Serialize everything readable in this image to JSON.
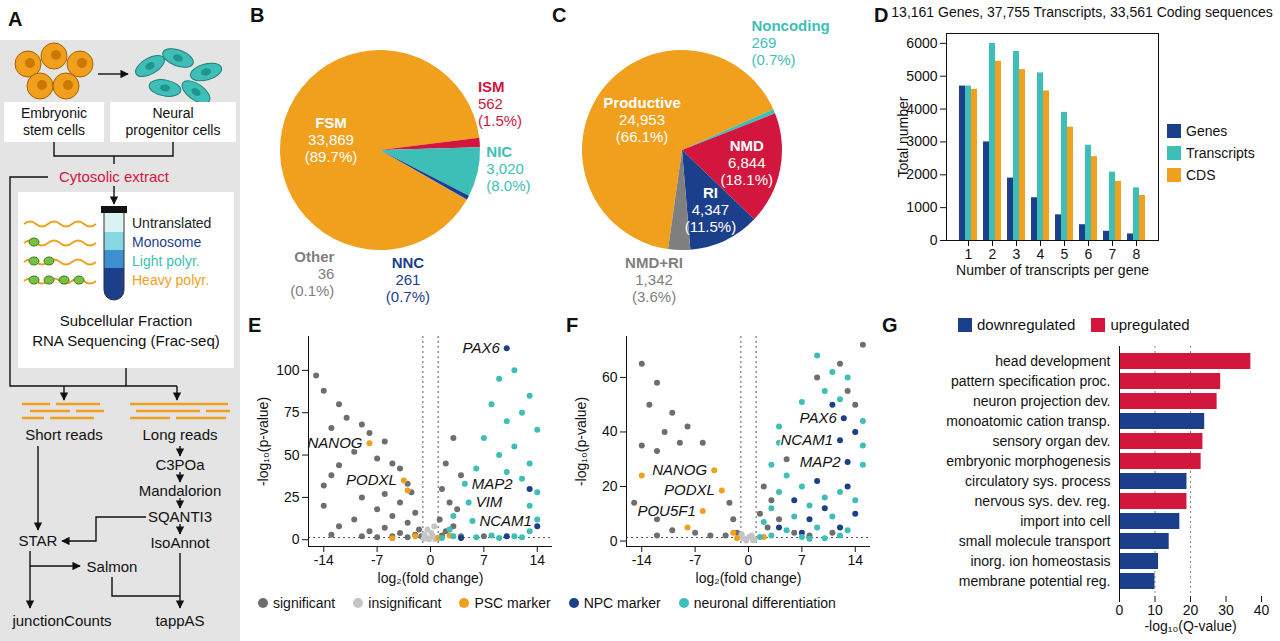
{
  "diagram": {
    "panel": "A",
    "start_cells": {
      "label": [
        "Embryonic",
        "stem cells"
      ],
      "color": "#f0a01c"
    },
    "end_cells": {
      "label": [
        "Neural",
        "progenitor cells"
      ],
      "color": "#3dbfb7"
    },
    "extract": {
      "label": "Cytosolic extract",
      "color": "#d2163d"
    },
    "fractions": [
      {
        "label": "Untranslated",
        "color": "#222222"
      },
      {
        "label": "Monosome",
        "color": "#1b3f8b"
      },
      {
        "label": "Light polyr.",
        "color": "#3dbfb7"
      },
      {
        "label": "Heavy polyr.",
        "color": "#f0a01c"
      }
    ],
    "method": [
      "Subcellular Fraction",
      "RNA Sequencing (Frac-seq)"
    ],
    "short_reads": "Short reads",
    "long_reads": "Long reads",
    "long_read_pipeline": [
      "C3POa",
      "Mandalorion",
      "SQANTI3",
      "IsoAnnot"
    ],
    "short_read_tools": {
      "aligner": "STAR",
      "quantifier": "Salmon"
    },
    "outputs": [
      "junctionCounts",
      "tappAS"
    ]
  },
  "chart_data": [
    {
      "panel": "B",
      "type": "pie",
      "data_labels": true,
      "categories": [
        "FSM",
        "ISM",
        "NIC",
        "NNC",
        "Other"
      ],
      "values": [
        33869,
        562,
        3020,
        261,
        36
      ],
      "value_labels": [
        "33,869",
        "562",
        "3,020",
        "261",
        "36"
      ],
      "percentages": [
        89.7,
        1.5,
        8.0,
        0.7,
        0.1
      ],
      "percent_labels": [
        "(89.7%)",
        "(1.5%)",
        "(8.0%)",
        "(0.7%)",
        "(0.1%)"
      ],
      "colors": [
        "#f0a01c",
        "#d2163d",
        "#3dbfb7",
        "#1b3f8b",
        "#7f7f7f"
      ]
    },
    {
      "panel": "C",
      "type": "pie",
      "data_labels": true,
      "categories": [
        "Productive",
        "Noncoding",
        "NMD",
        "RI",
        "NMD+RI"
      ],
      "values": [
        24953,
        269,
        6844,
        4347,
        1342
      ],
      "value_labels": [
        "24,953",
        "269",
        "6,844",
        "4,347",
        "1,342"
      ],
      "percentages": [
        66.1,
        0.7,
        18.1,
        11.5,
        3.6
      ],
      "percent_labels": [
        "(66.1%)",
        "(0.7%)",
        "(18.1%)",
        "(11.5%)",
        "(3.6%)"
      ],
      "colors": [
        "#f0a01c",
        "#3dbfb7",
        "#d2163d",
        "#1b3f8b",
        "#7f7f7f"
      ]
    },
    {
      "panel": "D",
      "type": "bar",
      "title": "13,161 Genes, 37,755 Transcripts, 33,561 Coding sequences",
      "x": [
        1,
        2,
        3,
        4,
        5,
        6,
        7,
        8
      ],
      "xlabel": "Number of transcripts per gene",
      "ylabel": "Total number",
      "series": [
        {
          "name": "Genes",
          "color": "#1b3f8b",
          "values": [
            4700,
            3000,
            1900,
            1300,
            780,
            480,
            280,
            200
          ]
        },
        {
          "name": "Transcripts",
          "color": "#3dbfb7",
          "values": [
            4700,
            6000,
            5750,
            5100,
            3900,
            2900,
            2080,
            1600
          ]
        },
        {
          "name": "CDS",
          "color": "#f0a01c",
          "values": [
            4600,
            5450,
            5200,
            4550,
            3450,
            2550,
            1800,
            1370
          ]
        }
      ],
      "ylim": [
        0,
        6300
      ],
      "yticks": [
        0,
        1000,
        2000,
        3000,
        4000,
        5000,
        6000
      ],
      "grid": false,
      "legend": "right"
    },
    {
      "panel": "E",
      "type": "scatter",
      "xlabel": "log₂(fold change)",
      "ylabel": "-log₁₀(p-value)",
      "xlim": [
        -16,
        16
      ],
      "xticks": [
        -14,
        -7,
        0,
        7,
        14
      ],
      "ylim": [
        -4,
        120
      ],
      "yticks": [
        0,
        25,
        50,
        75,
        100
      ],
      "grid": false,
      "legend": "bottom",
      "reference_lines": {
        "x": [
          -1,
          1
        ],
        "y": [
          1.3
        ]
      },
      "series": [
        {
          "name": "significant",
          "color": "#6e6e6e",
          "x": [
            -15,
            -14,
            -12,
            -11,
            -9,
            -8,
            -13,
            -6,
            -10,
            -7,
            -5,
            -12,
            -4,
            -13,
            -3,
            -14,
            -6,
            -2.5,
            -9,
            -4,
            -14,
            -7,
            -2,
            -5,
            -10,
            -3,
            -12,
            -6,
            -1.5,
            -8,
            -4,
            -2,
            -13,
            -9,
            -5,
            -1.2,
            -3,
            -7,
            3,
            2,
            4,
            1.5,
            2.5,
            3.5,
            1.2,
            3,
            2,
            7,
            1.5,
            4
          ],
          "y": [
            97,
            88,
            80,
            72,
            68,
            63,
            66,
            58,
            52,
            48,
            45,
            44,
            42,
            38,
            33,
            32,
            27,
            28,
            25,
            22,
            20,
            18,
            16,
            14,
            12,
            10,
            8,
            7,
            6,
            5,
            4,
            3,
            3,
            2,
            2,
            2,
            1.5,
            1.5,
            60,
            45,
            38,
            30,
            22,
            18,
            12,
            8,
            5,
            2,
            2.5,
            2
          ]
        },
        {
          "name": "insignificant",
          "color": "#c4c4c4",
          "x": [
            -0.8,
            -0.5,
            0.3,
            0.6,
            -0.2,
            0.9,
            -0.9,
            0.1,
            -0.4,
            0.5
          ],
          "y": [
            3,
            1,
            2,
            0.5,
            0.3,
            1.2,
            0.6,
            4,
            6,
            8
          ]
        },
        {
          "name": "PSC marker",
          "color": "#f0a01c",
          "x": [
            -8,
            -3.5,
            -3,
            -2,
            1,
            -5,
            2.5
          ],
          "y": [
            57,
            35,
            29,
            2,
            1,
            0.8,
            2.5
          ]
        },
        {
          "name": "NPC marker",
          "color": "#1b3f8b",
          "x": [
            10,
            13,
            14,
            10,
            4
          ],
          "y": [
            113,
            30,
            8,
            2,
            1
          ]
        },
        {
          "name": "neuronal differentiation",
          "color": "#3dbfb7",
          "x": [
            11,
            9,
            13,
            8,
            12,
            10,
            14,
            7,
            11,
            9,
            13,
            6,
            10,
            12,
            14,
            13,
            14,
            13,
            8,
            11,
            3,
            6,
            9,
            12,
            1.5,
            2.5,
            3,
            4.5,
            5,
            5.5
          ],
          "y": [
            100,
            95,
            85,
            80,
            75,
            70,
            65,
            60,
            55,
            50,
            45,
            42,
            40,
            36,
            28,
            20,
            12,
            5,
            2.5,
            2,
            2,
            1.5,
            1,
            1.5,
            1,
            6,
            14,
            33,
            22,
            11
          ]
        }
      ],
      "annotations": [
        {
          "text": "PAX6",
          "x": 10,
          "y": 113
        },
        {
          "text": "NANOG",
          "x": -8,
          "y": 57
        },
        {
          "text": "PODXL",
          "x": -3.5,
          "y": 35
        },
        {
          "text": "MAP2",
          "x": 4.5,
          "y": 33
        },
        {
          "text": "VIM",
          "x": 5,
          "y": 22
        },
        {
          "text": "NCAM1",
          "x": 5.5,
          "y": 11
        }
      ]
    },
    {
      "panel": "F",
      "type": "scatter",
      "xlabel": "log₂(fold change)",
      "ylabel": "-log₁₀(p-value)",
      "xlim": [
        -16,
        16
      ],
      "xticks": [
        -14,
        -7,
        0,
        7,
        14
      ],
      "ylim": [
        -2,
        75
      ],
      "yticks": [
        0,
        20,
        40,
        60
      ],
      "grid": false,
      "legend": "bottom",
      "reference_lines": {
        "x": [
          -1,
          1
        ],
        "y": [
          1.3
        ]
      },
      "series": [
        {
          "name": "significant",
          "color": "#6e6e6e",
          "x": [
            -14,
            -12,
            -13,
            -10,
            -11,
            -8,
            -14,
            -9,
            -6,
            -12,
            -15,
            -12,
            -10,
            -7,
            -2,
            -5,
            -3,
            -1.5,
            -12,
            -2.5,
            2,
            3,
            1.5,
            4,
            2.5,
            6,
            8,
            11,
            5,
            13,
            15,
            14,
            9,
            12
          ],
          "y": [
            65,
            58,
            50,
            47,
            40,
            42,
            35,
            36,
            36,
            33,
            14,
            8,
            4,
            3,
            8,
            2,
            2,
            3,
            2,
            14,
            20,
            15,
            10,
            8,
            5,
            3,
            2,
            3,
            30,
            55,
            72,
            50,
            60,
            65
          ]
        },
        {
          "name": "insignificant",
          "color": "#c4c4c4",
          "x": [
            -0.7,
            0.4,
            0.8,
            -0.3,
            0.1,
            -0.9,
            0.6
          ],
          "y": [
            1,
            2,
            0.6,
            0.2,
            1.5,
            2.5,
            0.3
          ]
        },
        {
          "name": "PSC marker",
          "color": "#f0a01c",
          "x": [
            -4.5,
            -3.5,
            -6,
            -14,
            -8,
            -2,
            -1.5,
            2
          ],
          "y": [
            26,
            18.5,
            11,
            24,
            5,
            3,
            1,
            1.5
          ]
        },
        {
          "name": "NPC marker",
          "color": "#1b3f8b",
          "x": [
            12.5,
            12,
            13,
            11,
            14,
            9,
            13,
            6,
            10,
            4,
            8,
            12,
            7,
            14
          ],
          "y": [
            45,
            37,
            29,
            50,
            40,
            22,
            20,
            15,
            12,
            5,
            8,
            5,
            3,
            10
          ]
        },
        {
          "name": "neuronal differentiation",
          "color": "#3dbfb7",
          "x": [
            9,
            11,
            13,
            10,
            12,
            7,
            15,
            4,
            15,
            4,
            3,
            15,
            5,
            7,
            12,
            4,
            10,
            8,
            14,
            3,
            6,
            11,
            2,
            9,
            13,
            5,
            3,
            7,
            10,
            1.5,
            12,
            8
          ],
          "y": [
            68,
            62,
            60,
            55,
            52,
            51,
            44,
            42,
            35,
            36,
            28,
            28,
            24,
            20,
            18,
            18,
            16,
            13,
            15,
            12,
            9,
            9,
            7,
            5,
            4,
            4,
            2,
            1.5,
            1,
            1.5,
            2,
            0.8
          ]
        }
      ],
      "annotations": [
        {
          "text": "PAX6",
          "x": 12.5,
          "y": 45
        },
        {
          "text": "NCAM1",
          "x": 12,
          "y": 37
        },
        {
          "text": "MAP2",
          "x": 13,
          "y": 29
        },
        {
          "text": "NANOG",
          "x": -4.5,
          "y": 26
        },
        {
          "text": "PODXL",
          "x": -3.5,
          "y": 18.5
        },
        {
          "text": "POU5F1",
          "x": -6,
          "y": 11
        }
      ]
    },
    {
      "panel": "G",
      "type": "bar",
      "orientation": "horizontal",
      "categories": [
        "head development",
        "pattern specification proc.",
        "neuron projection dev.",
        "monoatomic cation transp.",
        "sensory organ dev.",
        "embryonic morphogenesis",
        "circulatory sys. process",
        "nervous sys. dev. reg.",
        "import into cell",
        "small molecule transport",
        "inorg. ion homeostasis",
        "membrane potential reg."
      ],
      "series": [
        {
          "name": "downregulated",
          "color": "#1b3f8b",
          "values": [
            null,
            null,
            null,
            24,
            null,
            null,
            19,
            null,
            17,
            14,
            11,
            10
          ]
        },
        {
          "name": "upregulated",
          "color": "#d2163d",
          "values": [
            37,
            28.5,
            27.5,
            null,
            23.5,
            23,
            null,
            19,
            null,
            null,
            null,
            null
          ]
        }
      ],
      "xlabel": "-log₁₀(Q-value)",
      "xlim": [
        0,
        40
      ],
      "xticks": [
        0,
        10,
        20,
        30,
        40
      ],
      "reference_lines": {
        "x": [
          10,
          20
        ]
      },
      "grid": false,
      "legend": "top"
    }
  ]
}
